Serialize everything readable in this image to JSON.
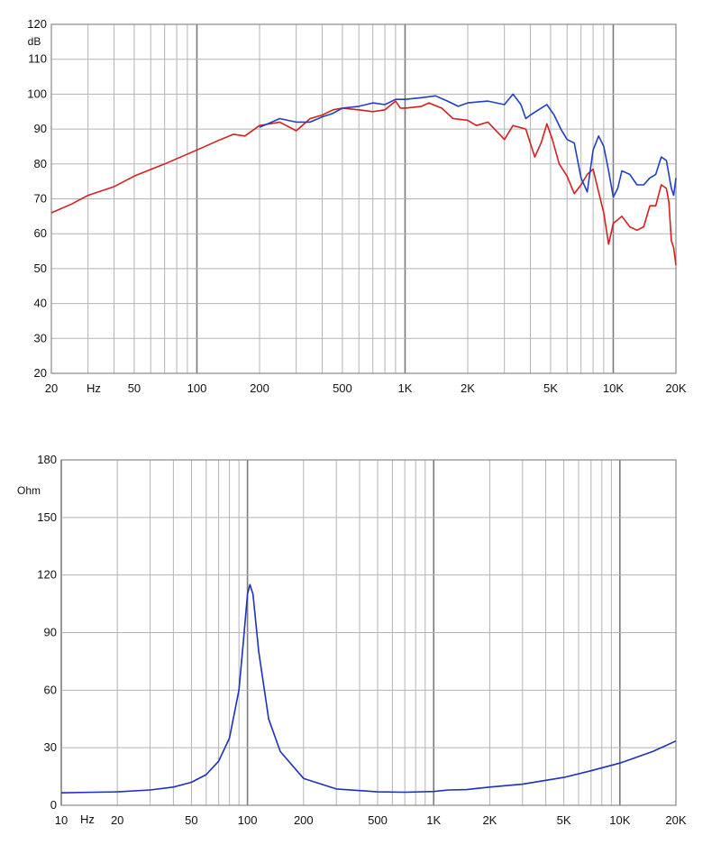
{
  "chart_data": [
    {
      "type": "line",
      "title": "",
      "x_scale": "log",
      "xlim": [
        20,
        20000
      ],
      "ylim": [
        20,
        120
      ],
      "grid": true,
      "x_ticks": [
        {
          "v": 20,
          "label": "20"
        },
        {
          "v": 50,
          "label": "50"
        },
        {
          "v": 100,
          "label": "100"
        },
        {
          "v": 200,
          "label": "200"
        },
        {
          "v": 500,
          "label": "500"
        },
        {
          "v": 1000,
          "label": "1K"
        },
        {
          "v": 2000,
          "label": "2K"
        },
        {
          "v": 5000,
          "label": "5K"
        },
        {
          "v": 10000,
          "label": "10K"
        },
        {
          "v": 20000,
          "label": "20K"
        }
      ],
      "x_unit_label": "Hz",
      "y_ticks": [
        20,
        30,
        40,
        50,
        60,
        70,
        80,
        90,
        100,
        110,
        120
      ],
      "y_unit_label": "dB",
      "series": [
        {
          "color": "#d42020",
          "points": [
            [
              20,
              66
            ],
            [
              25,
              68.5
            ],
            [
              30,
              71
            ],
            [
              40,
              73.5
            ],
            [
              50,
              76.5
            ],
            [
              70,
              80
            ],
            [
              100,
              84
            ],
            [
              130,
              87
            ],
            [
              150,
              88.5
            ],
            [
              170,
              88
            ],
            [
              200,
              91
            ],
            [
              250,
              92
            ],
            [
              300,
              89.5
            ],
            [
              350,
              93
            ],
            [
              400,
              94
            ],
            [
              450,
              95.5
            ],
            [
              500,
              96
            ],
            [
              600,
              95.5
            ],
            [
              700,
              95
            ],
            [
              800,
              95.5
            ],
            [
              900,
              98
            ],
            [
              950,
              96
            ],
            [
              1000,
              96
            ],
            [
              1200,
              96.5
            ],
            [
              1300,
              97.5
            ],
            [
              1500,
              96
            ],
            [
              1700,
              93
            ],
            [
              2000,
              92.5
            ],
            [
              2200,
              91
            ],
            [
              2500,
              92
            ],
            [
              3000,
              87
            ],
            [
              3300,
              91
            ],
            [
              3800,
              90
            ],
            [
              4200,
              82
            ],
            [
              4500,
              86
            ],
            [
              4800,
              91.5
            ],
            [
              5100,
              87
            ],
            [
              5500,
              80
            ],
            [
              6000,
              76.5
            ],
            [
              6500,
              71.5
            ],
            [
              7000,
              74
            ],
            [
              7500,
              77
            ],
            [
              8000,
              78.5
            ],
            [
              8500,
              72
            ],
            [
              9000,
              66
            ],
            [
              9500,
              57
            ],
            [
              10000,
              63
            ],
            [
              10500,
              64
            ],
            [
              11000,
              65
            ],
            [
              12000,
              62
            ],
            [
              13000,
              61
            ],
            [
              14000,
              62
            ],
            [
              15000,
              68
            ],
            [
              16000,
              68
            ],
            [
              17000,
              74
            ],
            [
              18000,
              73
            ],
            [
              18500,
              69
            ],
            [
              19000,
              58
            ],
            [
              19500,
              56
            ],
            [
              20000,
              51
            ]
          ]
        },
        {
          "color": "#1f3fc4",
          "points": [
            [
              200,
              90.5
            ],
            [
              250,
              93
            ],
            [
              300,
              92
            ],
            [
              350,
              92
            ],
            [
              400,
              93.5
            ],
            [
              450,
              94.5
            ],
            [
              500,
              96
            ],
            [
              600,
              96.5
            ],
            [
              700,
              97.5
            ],
            [
              800,
              97
            ],
            [
              900,
              98.5
            ],
            [
              1000,
              98.5
            ],
            [
              1200,
              99
            ],
            [
              1400,
              99.5
            ],
            [
              1600,
              98
            ],
            [
              1800,
              96.5
            ],
            [
              2000,
              97.5
            ],
            [
              2500,
              98
            ],
            [
              3000,
              97
            ],
            [
              3300,
              100
            ],
            [
              3600,
              97
            ],
            [
              3800,
              93
            ],
            [
              4000,
              94
            ],
            [
              4500,
              96
            ],
            [
              4800,
              97
            ],
            [
              5200,
              94
            ],
            [
              5600,
              90
            ],
            [
              6000,
              87
            ],
            [
              6500,
              86
            ],
            [
              7000,
              76
            ],
            [
              7500,
              72
            ],
            [
              8000,
              84
            ],
            [
              8500,
              88
            ],
            [
              9000,
              85
            ],
            [
              9500,
              78
            ],
            [
              10000,
              70.5
            ],
            [
              10500,
              73
            ],
            [
              11000,
              78
            ],
            [
              12000,
              77
            ],
            [
              13000,
              74
            ],
            [
              14000,
              74
            ],
            [
              15000,
              76
            ],
            [
              16000,
              77
            ],
            [
              17000,
              82
            ],
            [
              18000,
              81
            ],
            [
              19000,
              73
            ],
            [
              19500,
              71
            ],
            [
              20000,
              76
            ]
          ]
        }
      ]
    },
    {
      "type": "line",
      "title": "",
      "x_scale": "log",
      "xlim": [
        10,
        20000
      ],
      "ylim": [
        0,
        180
      ],
      "grid": true,
      "x_ticks": [
        {
          "v": 10,
          "label": "10"
        },
        {
          "v": 20,
          "label": "20"
        },
        {
          "v": 50,
          "label": "50"
        },
        {
          "v": 100,
          "label": "100"
        },
        {
          "v": 200,
          "label": "200"
        },
        {
          "v": 500,
          "label": "500"
        },
        {
          "v": 1000,
          "label": "1K"
        },
        {
          "v": 2000,
          "label": "2K"
        },
        {
          "v": 5000,
          "label": "5K"
        },
        {
          "v": 10000,
          "label": "10K"
        },
        {
          "v": 20000,
          "label": "20K"
        }
      ],
      "x_unit_label": "Hz",
      "y_ticks": [
        0,
        30,
        60,
        90,
        120,
        150,
        180
      ],
      "y_unit_label": "Ohm",
      "series": [
        {
          "color": "#1f2fc0",
          "points": [
            [
              10,
              6.5
            ],
            [
              15,
              6.8
            ],
            [
              20,
              7
            ],
            [
              30,
              8
            ],
            [
              40,
              9.5
            ],
            [
              50,
              12
            ],
            [
              60,
              16
            ],
            [
              70,
              23
            ],
            [
              80,
              35
            ],
            [
              90,
              60
            ],
            [
              95,
              85
            ],
            [
              100,
              110
            ],
            [
              103,
              115
            ],
            [
              107,
              110
            ],
            [
              115,
              80
            ],
            [
              130,
              45
            ],
            [
              150,
              28
            ],
            [
              200,
              14
            ],
            [
              300,
              8.5
            ],
            [
              500,
              7
            ],
            [
              700,
              6.8
            ],
            [
              1000,
              7.2
            ],
            [
              1200,
              8
            ],
            [
              1500,
              8.2
            ],
            [
              2000,
              9.5
            ],
            [
              3000,
              11
            ],
            [
              5000,
              14.5
            ],
            [
              7000,
              18
            ],
            [
              10000,
              22
            ],
            [
              15000,
              28
            ],
            [
              20000,
              33.5
            ]
          ]
        }
      ]
    }
  ]
}
